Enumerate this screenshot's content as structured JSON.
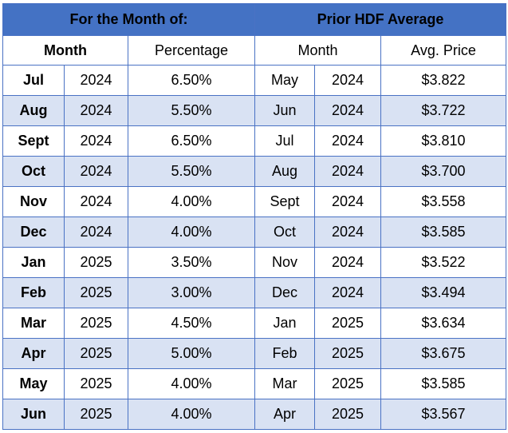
{
  "banner": {
    "left": "For the Month of:",
    "right": "Prior HDF Average"
  },
  "headers": {
    "month_left": "Month",
    "percentage": "Percentage",
    "month_right": "Month",
    "avg_price": "Avg. Price"
  },
  "rows": [
    {
      "month": "Jul",
      "year": "2024",
      "pct": "6.50%",
      "prior_month": "May",
      "prior_year": "2024",
      "price": "$3.822"
    },
    {
      "month": "Aug",
      "year": "2024",
      "pct": "5.50%",
      "prior_month": "Jun",
      "prior_year": "2024",
      "price": "$3.722"
    },
    {
      "month": "Sept",
      "year": "2024",
      "pct": "6.50%",
      "prior_month": "Jul",
      "prior_year": "2024",
      "price": "$3.810"
    },
    {
      "month": "Oct",
      "year": "2024",
      "pct": "5.50%",
      "prior_month": "Aug",
      "prior_year": "2024",
      "price": "$3.700"
    },
    {
      "month": "Nov",
      "year": "2024",
      "pct": "4.00%",
      "prior_month": "Sept",
      "prior_year": "2024",
      "price": "$3.558"
    },
    {
      "month": "Dec",
      "year": "2024",
      "pct": "4.00%",
      "prior_month": "Oct",
      "prior_year": "2024",
      "price": "$3.585"
    },
    {
      "month": "Jan",
      "year": "2025",
      "pct": "3.50%",
      "prior_month": "Nov",
      "prior_year": "2024",
      "price": "$3.522"
    },
    {
      "month": "Feb",
      "year": "2025",
      "pct": "3.00%",
      "prior_month": "Dec",
      "prior_year": "2024",
      "price": "$3.494"
    },
    {
      "month": "Mar",
      "year": "2025",
      "pct": "4.50%",
      "prior_month": "Jan",
      "prior_year": "2025",
      "price": "$3.634"
    },
    {
      "month": "Apr",
      "year": "2025",
      "pct": "5.00%",
      "prior_month": "Feb",
      "prior_year": "2025",
      "price": "$3.675"
    },
    {
      "month": "May",
      "year": "2025",
      "pct": "4.00%",
      "prior_month": "Mar",
      "prior_year": "2025",
      "price": "$3.585"
    },
    {
      "month": "Jun",
      "year": "2025",
      "pct": "4.00%",
      "prior_month": "Apr",
      "prior_year": "2025",
      "price": "$3.567"
    }
  ],
  "colors": {
    "banner": "#4472c4",
    "shaded_row": "#d9e2f3",
    "border": "#4a72c4"
  }
}
